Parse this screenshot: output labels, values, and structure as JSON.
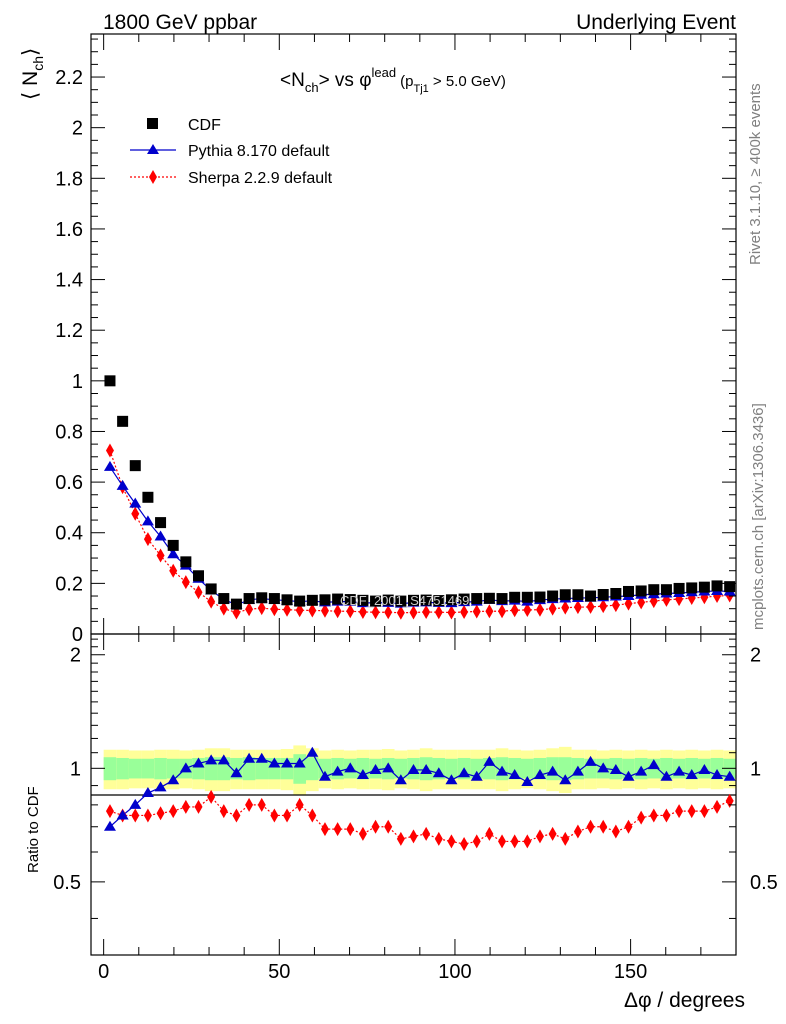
{
  "header": {
    "left": "1800 GeV ppbar",
    "right": "Underlying Event"
  },
  "side_labels": {
    "rivet": "Rivet 3.1.10, ≥ 400k events",
    "mcplots": "mcplots.cern.ch [arXiv:1306.3436]"
  },
  "watermark": "CDF_2001_S4751469",
  "chart_data": [
    {
      "type": "scatter",
      "panel": "main",
      "title": "<N_ch> vs φ^lead (p_Tj1 > 5.0 GeV)",
      "title_parts": {
        "pre": "<N",
        "sub1": "ch",
        "mid": "> vs φ",
        "sup": "lead",
        "post1": "(p",
        "sub2": "Tj1",
        "post2": " > 5.0 GeV)"
      },
      "ylabel": "⟨ N",
      "ylabel_sub": "ch",
      "ylabel_close": "⟩",
      "xlim": [
        -3.6,
        180
      ],
      "ylim": [
        0,
        2.37
      ],
      "y_ticks": [
        0,
        0.2,
        0.4,
        0.6,
        0.8,
        1,
        1.2,
        1.4,
        1.6,
        1.8,
        2,
        2.2
      ],
      "y_tick_labels": [
        "0",
        "0.2",
        "0.4",
        "0.6",
        "0.8",
        "1",
        "1.2",
        "1.4",
        "1.6",
        "1.8",
        "2",
        "2.2"
      ],
      "legend_position": "top-left",
      "x": [
        1.8,
        5.4,
        9.0,
        12.6,
        16.2,
        19.8,
        23.4,
        27.0,
        30.6,
        34.2,
        37.8,
        41.4,
        45.0,
        48.6,
        52.2,
        55.8,
        59.4,
        63.0,
        66.6,
        70.2,
        73.8,
        77.4,
        81.0,
        84.6,
        88.2,
        91.8,
        95.4,
        99.0,
        102.6,
        106.2,
        109.8,
        113.4,
        117.0,
        120.6,
        124.2,
        127.8,
        131.4,
        135.0,
        138.6,
        142.2,
        145.8,
        149.4,
        153.0,
        156.6,
        160.2,
        163.8,
        167.4,
        171.0,
        174.6,
        178.2
      ],
      "series": [
        {
          "name": "CDF",
          "color": "#000000",
          "marker": "square",
          "values": [
            1.0,
            0.84,
            0.665,
            0.54,
            0.44,
            0.35,
            0.285,
            0.23,
            0.178,
            0.14,
            0.118,
            0.14,
            0.143,
            0.14,
            0.135,
            0.13,
            0.133,
            0.135,
            0.138,
            0.136,
            0.133,
            0.13,
            0.134,
            0.13,
            0.133,
            0.134,
            0.132,
            0.135,
            0.138,
            0.14,
            0.141,
            0.14,
            0.145,
            0.145,
            0.146,
            0.15,
            0.155,
            0.155,
            0.15,
            0.156,
            0.16,
            0.168,
            0.17,
            0.175,
            0.175,
            0.18,
            0.182,
            0.185,
            0.19,
            0.187
          ]
        },
        {
          "name": "Pythia 8.170 default",
          "color": "#0000cc",
          "marker": "triangle",
          "line": "solid",
          "values": [
            0.66,
            0.585,
            0.515,
            0.445,
            0.385,
            0.315,
            0.27,
            0.218,
            0.172,
            0.137,
            0.115,
            0.135,
            0.14,
            0.135,
            0.132,
            0.128,
            0.131,
            0.125,
            0.128,
            0.128,
            0.122,
            0.124,
            0.123,
            0.12,
            0.124,
            0.125,
            0.123,
            0.122,
            0.126,
            0.128,
            0.135,
            0.13,
            0.132,
            0.128,
            0.134,
            0.138,
            0.14,
            0.142,
            0.143,
            0.145,
            0.148,
            0.15,
            0.155,
            0.157,
            0.16,
            0.162,
            0.165,
            0.168,
            0.17,
            0.168
          ]
        },
        {
          "name": "Sherpa 2.2.9 default",
          "color": "#ff0000",
          "marker": "diamond",
          "line": "dotted",
          "values": [
            0.725,
            0.58,
            0.475,
            0.375,
            0.31,
            0.25,
            0.205,
            0.165,
            0.128,
            0.1,
            0.085,
            0.098,
            0.102,
            0.098,
            0.096,
            0.094,
            0.093,
            0.092,
            0.09,
            0.09,
            0.087,
            0.086,
            0.086,
            0.084,
            0.085,
            0.087,
            0.086,
            0.085,
            0.087,
            0.089,
            0.09,
            0.09,
            0.094,
            0.095,
            0.096,
            0.1,
            0.104,
            0.106,
            0.107,
            0.11,
            0.114,
            0.12,
            0.125,
            0.13,
            0.135,
            0.138,
            0.142,
            0.145,
            0.15,
            0.152
          ]
        }
      ]
    },
    {
      "type": "scatter",
      "panel": "ratio",
      "ylabel": "Ratio to CDF",
      "xlabel": "Δφ / degrees",
      "xlim": [
        -3.6,
        180
      ],
      "ylim": [
        0.32,
        2.27
      ],
      "x_ticks": [
        0,
        50,
        100,
        150
      ],
      "x_tick_labels": [
        "0",
        "50",
        "100",
        "150"
      ],
      "y_ticks": [
        0.5,
        1,
        2
      ],
      "y_tick_labels": [
        "0.5",
        "1",
        "2"
      ],
      "band_inner": [
        0.07,
        0.065,
        0.06,
        0.06,
        0.065,
        0.06,
        0.06,
        0.065,
        0.07,
        0.07,
        0.065,
        0.07,
        0.065,
        0.065,
        0.065,
        0.09,
        0.07,
        0.06,
        0.065,
        0.06,
        0.065,
        0.06,
        0.065,
        0.06,
        0.065,
        0.07,
        0.065,
        0.06,
        0.065,
        0.06,
        0.065,
        0.07,
        0.065,
        0.06,
        0.065,
        0.07,
        0.07,
        0.065,
        0.06,
        0.06,
        0.065,
        0.06,
        0.065,
        0.06,
        0.065,
        0.06,
        0.065,
        0.06,
        0.065,
        0.06
      ],
      "band_outer": [
        0.12,
        0.12,
        0.115,
        0.115,
        0.12,
        0.12,
        0.115,
        0.12,
        0.13,
        0.13,
        0.12,
        0.12,
        0.12,
        0.12,
        0.125,
        0.15,
        0.13,
        0.115,
        0.12,
        0.115,
        0.12,
        0.12,
        0.125,
        0.115,
        0.12,
        0.13,
        0.12,
        0.12,
        0.12,
        0.12,
        0.12,
        0.13,
        0.12,
        0.115,
        0.12,
        0.13,
        0.14,
        0.12,
        0.12,
        0.115,
        0.12,
        0.115,
        0.12,
        0.115,
        0.12,
        0.115,
        0.12,
        0.115,
        0.12,
        0.115
      ],
      "series": [
        {
          "name": "Pythia 8.170 default",
          "color": "#0000cc",
          "marker": "triangle",
          "line": "solid",
          "values": [
            0.7,
            0.75,
            0.8,
            0.86,
            0.89,
            0.93,
            1.0,
            1.03,
            1.05,
            1.05,
            0.97,
            1.06,
            1.06,
            1.03,
            1.03,
            1.03,
            1.1,
            0.95,
            0.98,
            1.0,
            0.96,
            0.99,
            1.0,
            0.93,
            0.99,
            0.99,
            0.97,
            0.93,
            0.97,
            0.95,
            1.04,
            0.98,
            0.96,
            0.92,
            0.96,
            0.98,
            0.93,
            0.98,
            1.04,
            1.0,
            0.99,
            0.95,
            0.98,
            1.02,
            0.95,
            0.98,
            0.96,
            0.99,
            0.96,
            0.95
          ]
        },
        {
          "name": "Sherpa 2.2.9 default",
          "color": "#ff0000",
          "marker": "diamond",
          "line": "dotted",
          "values": [
            0.77,
            0.75,
            0.75,
            0.75,
            0.76,
            0.77,
            0.79,
            0.79,
            0.84,
            0.77,
            0.75,
            0.8,
            0.8,
            0.75,
            0.75,
            0.8,
            0.75,
            0.69,
            0.69,
            0.69,
            0.67,
            0.7,
            0.7,
            0.65,
            0.66,
            0.67,
            0.65,
            0.64,
            0.63,
            0.64,
            0.67,
            0.64,
            0.64,
            0.64,
            0.66,
            0.67,
            0.65,
            0.68,
            0.7,
            0.7,
            0.68,
            0.7,
            0.74,
            0.75,
            0.75,
            0.77,
            0.77,
            0.77,
            0.79,
            0.82
          ]
        }
      ]
    }
  ]
}
